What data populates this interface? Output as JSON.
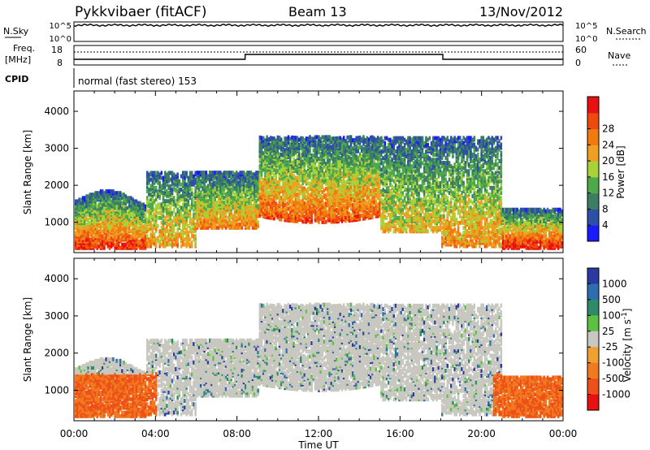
{
  "header": {
    "station": "Pykkvibaer (fitACF)",
    "beam": "Beam 13",
    "date": "13/Nov/2012"
  },
  "nsky_panel": {
    "left_label": "N.Sky",
    "right_label": "N.Search",
    "ticks_left": [
      "10^5",
      "10^0"
    ],
    "ticks_right": [
      "10^5",
      "10^0"
    ]
  },
  "freq_panel": {
    "left_label_1": "Freq.",
    "left_label_2": "[MHz]",
    "right_label": "Nave",
    "ticks_left": [
      "18",
      "8"
    ],
    "ticks_right": [
      "60",
      "0"
    ]
  },
  "cpid": {
    "label": "CPID",
    "text": "normal (fast stereo) 153"
  },
  "chart_data": [
    {
      "type": "heatmap",
      "name": "power",
      "ylabel": "Slant Range [km]",
      "y_ticks": [
        "1000",
        "2000",
        "3000",
        "4000"
      ],
      "ylim": [
        180,
        4550
      ],
      "xlim_hours": [
        0,
        24
      ],
      "colorbar": {
        "label": "Power [dB]",
        "ticks": [
          "4",
          "8",
          "12",
          "16",
          "20",
          "24",
          "28"
        ],
        "colors": [
          "#1a1aff",
          "#2e4fa8",
          "#3d7d64",
          "#4caa4a",
          "#a9d23a",
          "#f0a020",
          "#f07a10",
          "#ee4a10",
          "#e81010"
        ]
      }
    },
    {
      "type": "heatmap",
      "name": "velocity",
      "ylabel": "Slant Range [km]",
      "y_ticks": [
        "1000",
        "2000",
        "3000",
        "4000"
      ],
      "ylim": [
        180,
        4550
      ],
      "xlim_hours": [
        0,
        24
      ],
      "colorbar": {
        "label": "Velocity [m s^-1]",
        "ticks": [
          "1000",
          "500",
          "100",
          "25",
          "-25",
          "-100",
          "-500",
          "-1000"
        ],
        "colors": [
          "#2a3aa0",
          "#2e6eb0",
          "#2f8a6a",
          "#5cc040",
          "#c8c8c0",
          "#f0a030",
          "#f07a20",
          "#ee5018",
          "#e81010"
        ]
      }
    }
  ],
  "x_axis": {
    "label": "Time UT",
    "ticks": [
      "00:00",
      "04:00",
      "08:00",
      "12:00",
      "16:00",
      "20:00",
      "00:00"
    ]
  }
}
